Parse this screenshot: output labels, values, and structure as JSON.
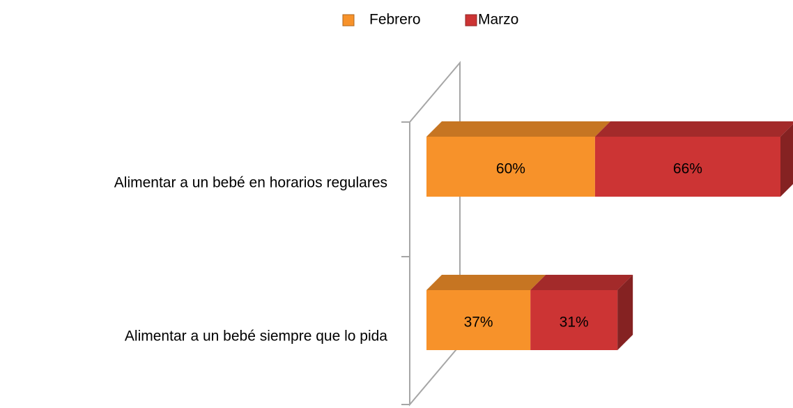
{
  "chart_data": {
    "type": "bar",
    "orientation": "horizontal",
    "stacked": true,
    "categories": [
      "Alimentar a un bebé en horarios regulares",
      "Alimentar a un bebé siempre que lo pida"
    ],
    "series": [
      {
        "name": "Febrero",
        "color": "#f7922a",
        "values": [
          60,
          37
        ],
        "value_labels": [
          "60%",
          "37%"
        ]
      },
      {
        "name": "Marzo",
        "color": "#cc3434",
        "values": [
          66,
          31
        ],
        "value_labels": [
          "66%",
          "31%"
        ]
      }
    ],
    "legend": "top"
  }
}
